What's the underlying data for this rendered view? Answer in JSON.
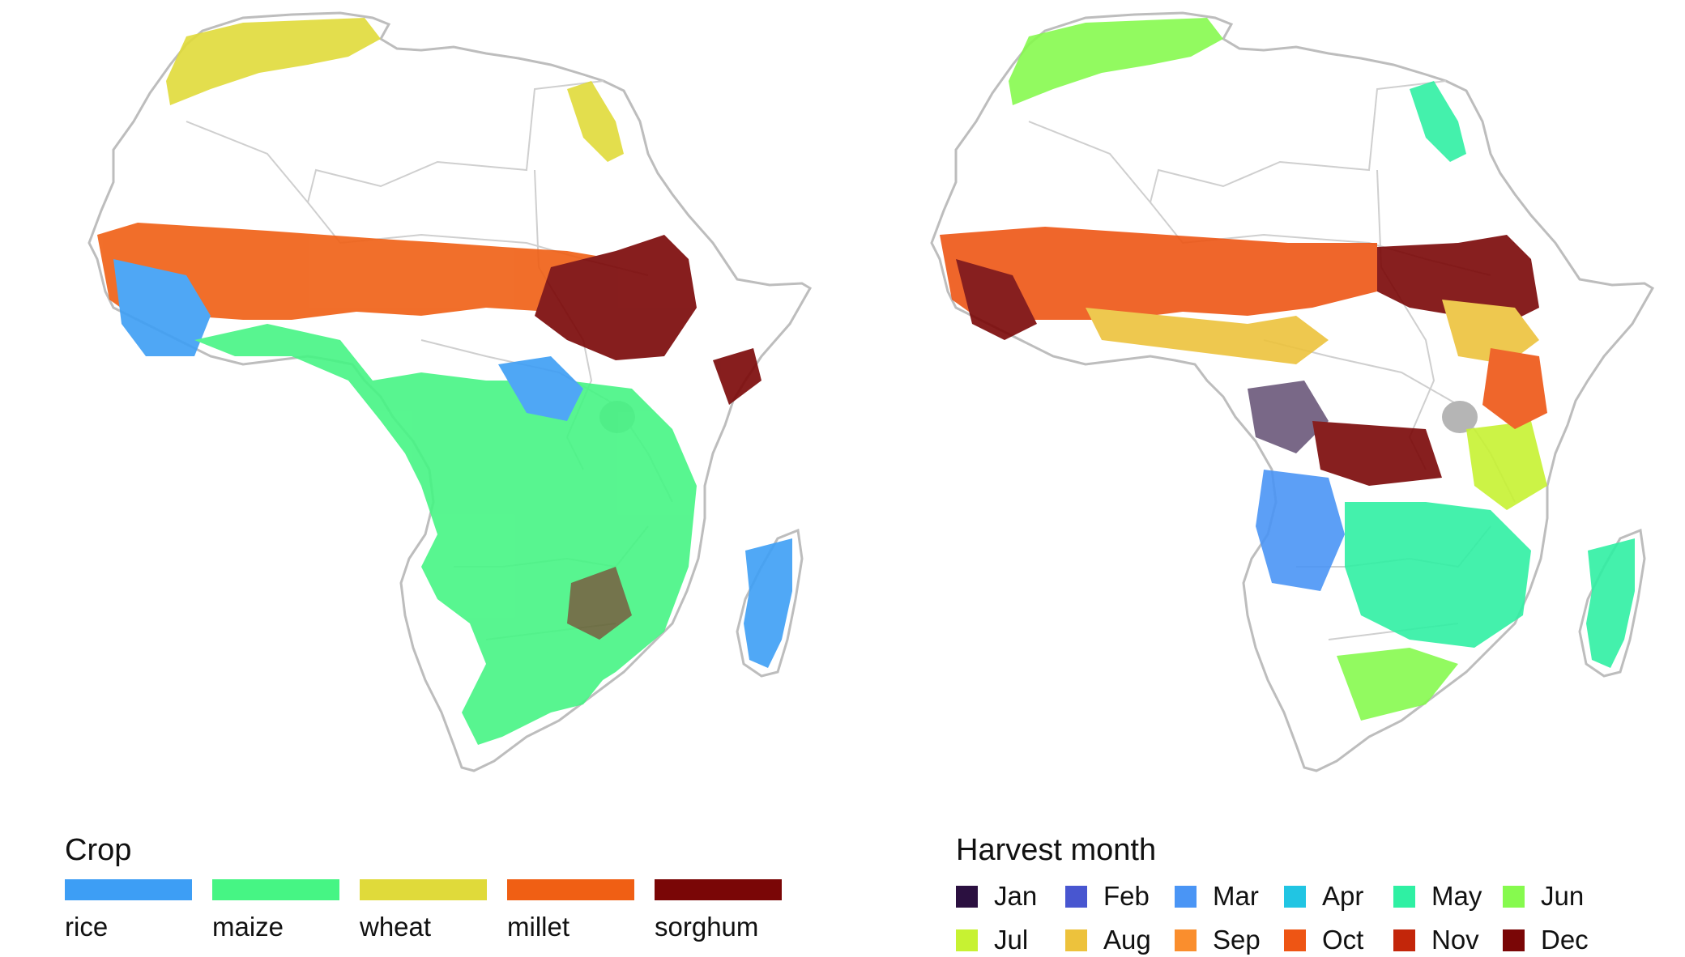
{
  "legend_crop": {
    "title": "Crop",
    "items": [
      {
        "label": "rice",
        "color": "#3d9ef5"
      },
      {
        "label": "maize",
        "color": "#46f584"
      },
      {
        "label": "wheat",
        "color": "#e0da3a"
      },
      {
        "label": "millet",
        "color": "#f05f14"
      },
      {
        "label": "sorghum",
        "color": "#7a0606"
      }
    ]
  },
  "legend_month": {
    "title": "Harvest month",
    "items": [
      {
        "label": "Jan",
        "color": "#2b1040"
      },
      {
        "label": "Feb",
        "color": "#4856d0"
      },
      {
        "label": "Mar",
        "color": "#4a95f5"
      },
      {
        "label": "Apr",
        "color": "#21c5e3"
      },
      {
        "label": "May",
        "color": "#2ff0a3"
      },
      {
        "label": "Jun",
        "color": "#86fa4e"
      },
      {
        "label": "Jul",
        "color": "#c7f232"
      },
      {
        "label": "Aug",
        "color": "#edc23c"
      },
      {
        "label": "Sep",
        "color": "#fa8e2d"
      },
      {
        "label": "Oct",
        "color": "#ee5514"
      },
      {
        "label": "Nov",
        "color": "#c3260a"
      },
      {
        "label": "Dec",
        "color": "#7a0606"
      }
    ]
  },
  "map_style": {
    "land_fill": "#ffffff",
    "border_color": "#bdbdbd",
    "lake_color": "#b5b5b5"
  }
}
